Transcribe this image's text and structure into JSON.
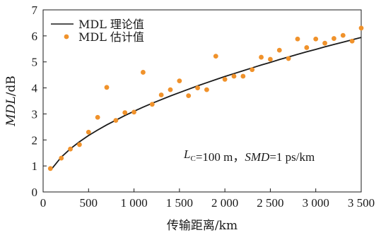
{
  "chart_data": {
    "type": "scatter",
    "title": "",
    "xlabel": "传输距离/km",
    "ylabel_italic": "MDL",
    "ylabel_unit": "/dB",
    "xlim": [
      0,
      3500
    ],
    "ylim": [
      0,
      7
    ],
    "x_ticks": [
      0,
      500,
      1000,
      1500,
      2000,
      2500,
      3000,
      3500
    ],
    "x_tick_labels": [
      "0",
      "500",
      "1 000",
      "1 500",
      "2 000",
      "2 500",
      "3 000",
      "3 500"
    ],
    "y_ticks": [
      0,
      1,
      2,
      3,
      4,
      5,
      6,
      7
    ],
    "y_tick_labels": [
      "0",
      "1",
      "2",
      "3",
      "4",
      "5",
      "6",
      "7"
    ],
    "grid": false,
    "legend_position": "top-left",
    "series": [
      {
        "name": "MDL 理论值",
        "type": "line",
        "color": "#1a1a1a",
        "x": [
          100,
          200,
          300,
          400,
          500,
          600,
          700,
          800,
          900,
          1000,
          1100,
          1200,
          1300,
          1400,
          1500,
          1600,
          1700,
          1800,
          1900,
          2000,
          2100,
          2200,
          2300,
          2400,
          2500,
          2600,
          2700,
          2800,
          2900,
          3000,
          3100,
          3200,
          3300,
          3400,
          3500
        ],
        "y": [
          0.91,
          1.34,
          1.66,
          1.93,
          2.17,
          2.38,
          2.58,
          2.76,
          2.94,
          3.1,
          3.26,
          3.41,
          3.55,
          3.69,
          3.82,
          3.95,
          4.08,
          4.2,
          4.32,
          4.44,
          4.55,
          4.66,
          4.77,
          4.88,
          4.98,
          5.09,
          5.19,
          5.29,
          5.39,
          5.48,
          5.58,
          5.67,
          5.76,
          5.85,
          5.94
        ]
      },
      {
        "name": "MDL 估计值",
        "type": "scatter",
        "color": "#f0922b",
        "x": [
          80,
          200,
          300,
          400,
          500,
          600,
          700,
          800,
          900,
          1000,
          1100,
          1200,
          1300,
          1400,
          1500,
          1600,
          1700,
          1800,
          1900,
          2000,
          2100,
          2200,
          2300,
          2400,
          2500,
          2600,
          2700,
          2800,
          2900,
          3000,
          3100,
          3200,
          3300,
          3400,
          3500
        ],
        "y": [
          0.9,
          1.3,
          1.65,
          1.82,
          2.3,
          2.87,
          4.02,
          2.75,
          3.05,
          3.07,
          4.6,
          3.37,
          3.73,
          3.93,
          4.27,
          3.7,
          4.0,
          3.93,
          5.22,
          4.33,
          4.45,
          4.45,
          4.7,
          5.18,
          5.1,
          5.45,
          5.13,
          5.88,
          5.55,
          5.88,
          5.72,
          5.9,
          6.02,
          5.8,
          6.3
        ]
      }
    ],
    "annotation": {
      "parts": [
        {
          "text": "L",
          "italic": true
        },
        {
          "text": "C",
          "sub": true
        },
        {
          "text": "=100 m，"
        },
        {
          "text": "SMD",
          "italic": true
        },
        {
          "text": "=1 ps/km"
        }
      ]
    }
  }
}
